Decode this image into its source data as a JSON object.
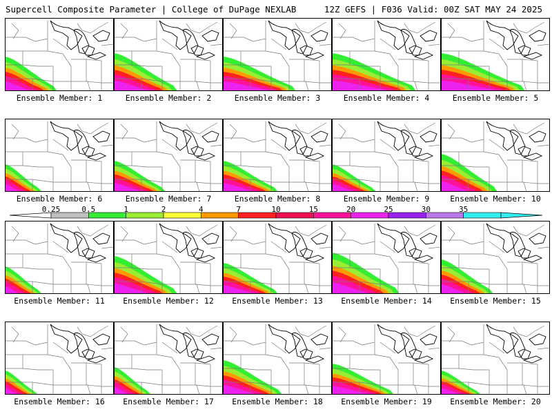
{
  "header": {
    "title": "Supercell Composite Parameter | College of DuPage NEXLAB",
    "run_info": "12Z GEFS | F036 Valid: 00Z SAT MAY 24 2025"
  },
  "members": [
    {
      "label": "Ensemble Member: 1"
    },
    {
      "label": "Ensemble Member: 2"
    },
    {
      "label": "Ensemble Member: 3"
    },
    {
      "label": "Ensemble Member: 4"
    },
    {
      "label": "Ensemble Member: 5"
    },
    {
      "label": "Ensemble Member: 6"
    },
    {
      "label": "Ensemble Member: 7"
    },
    {
      "label": "Ensemble Member: 8"
    },
    {
      "label": "Ensemble Member: 9"
    },
    {
      "label": "Ensemble Member: 10"
    },
    {
      "label": "Ensemble Member: 11"
    },
    {
      "label": "Ensemble Member: 12"
    },
    {
      "label": "Ensemble Member: 13"
    },
    {
      "label": "Ensemble Member: 14"
    },
    {
      "label": "Ensemble Member: 15"
    },
    {
      "label": "Ensemble Member: 16"
    },
    {
      "label": "Ensemble Member: 17"
    },
    {
      "label": "Ensemble Member: 18"
    },
    {
      "label": "Ensemble Member: 19"
    },
    {
      "label": "Ensemble Member: 20"
    }
  ],
  "legend": {
    "ticks": [
      "0.25",
      "0.5",
      "1",
      "2",
      "4",
      "7",
      "10",
      "15",
      "20",
      "25",
      "30",
      "35"
    ],
    "colors": [
      "#c0c0c0",
      "#33ee33",
      "#99ee33",
      "#ffff33",
      "#ff9900",
      "#ff2020",
      "#ee1050",
      "#ff1199",
      "#ee22ee",
      "#9922ee",
      "#bb77ee",
      "#33eeee"
    ]
  }
}
